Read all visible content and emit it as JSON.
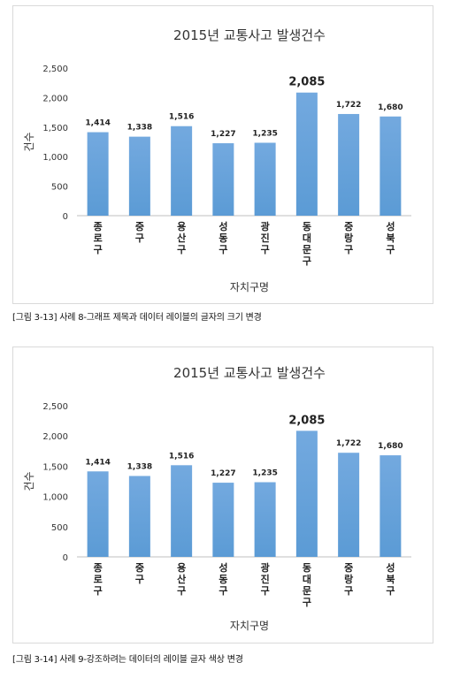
{
  "figures": [
    {
      "caption": "[그림 3-13] 사례 8-그래프 제목과 데이터 레이블의 글자의 크기 변경",
      "highlight_color": "#222222"
    },
    {
      "caption": "[그림 3-14] 사례 9-강조하려는 데이터의 레이블 글자 색상 변경",
      "highlight_color": "#1f1fbf"
    }
  ],
  "chart_data": [
    {
      "type": "bar",
      "title": "2015년 교통사고 발생건수",
      "xlabel": "자치구명",
      "ylabel": "건수",
      "categories": [
        "종로구",
        "중구",
        "용산구",
        "성동구",
        "광진구",
        "동대문구",
        "중랑구",
        "성북구"
      ],
      "values": [
        1414,
        1338,
        1516,
        1227,
        1235,
        2085,
        1722,
        1680
      ],
      "data_labels": [
        "1,414",
        "1,338",
        "1,516",
        "1,227",
        "1,235",
        "2,085",
        "1,722",
        "1,680"
      ],
      "yticks": [
        "0",
        "500",
        "1,000",
        "1,500",
        "2,000",
        "2,500"
      ],
      "ylim": [
        0,
        2500
      ],
      "highlight_index": 5,
      "bar_color": "#5b9bd5",
      "grid": false,
      "legend": "none"
    },
    {
      "type": "bar",
      "title": "2015년 교통사고 발생건수",
      "xlabel": "자치구명",
      "ylabel": "건수",
      "categories": [
        "종로구",
        "중구",
        "용산구",
        "성동구",
        "광진구",
        "동대문구",
        "중랑구",
        "성북구"
      ],
      "values": [
        1414,
        1338,
        1516,
        1227,
        1235,
        2085,
        1722,
        1680
      ],
      "data_labels": [
        "1,414",
        "1,338",
        "1,516",
        "1,227",
        "1,235",
        "2,085",
        "1,722",
        "1,680"
      ],
      "yticks": [
        "0",
        "500",
        "1,000",
        "1,500",
        "2,000",
        "2,500"
      ],
      "ylim": [
        0,
        2500
      ],
      "highlight_index": 5,
      "bar_color": "#5b9bd5",
      "grid": false,
      "legend": "none"
    }
  ]
}
